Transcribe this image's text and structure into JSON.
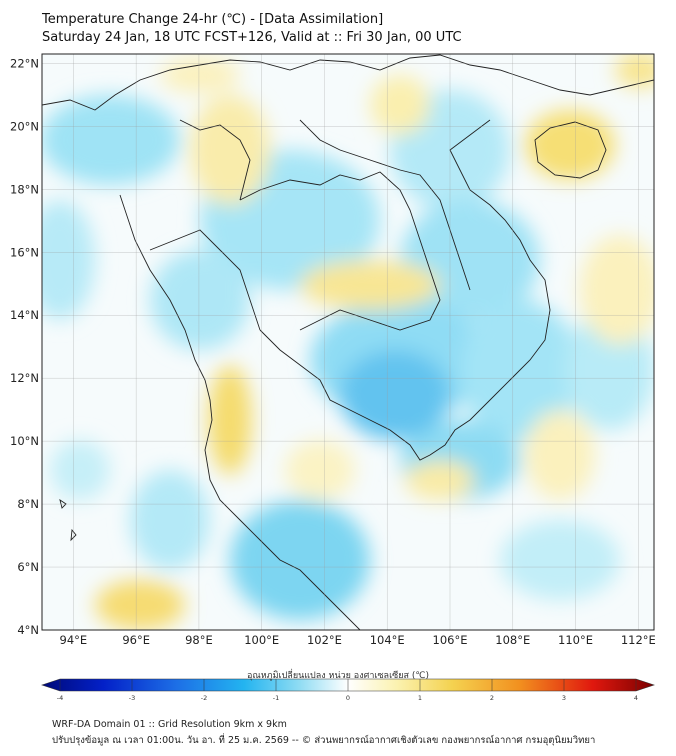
{
  "title": {
    "line1": "Temperature Change 24-hr (℃) - [Data Assimilation]",
    "line2": "Saturday 24 Jan, 18 UTC FCST+126, Valid at :: Fri 30 Jan, 00 UTC"
  },
  "map": {
    "lon_range": [
      93,
      112.5
    ],
    "lat_range": [
      4,
      22.3
    ],
    "lon_ticks": [
      "94°E",
      "96°E",
      "98°E",
      "100°E",
      "102°E",
      "104°E",
      "106°E",
      "108°E",
      "110°E",
      "112°E"
    ],
    "lon_values": [
      94,
      96,
      98,
      100,
      102,
      104,
      106,
      108,
      110,
      112
    ],
    "lat_ticks": [
      "4°N",
      "6°N",
      "8°N",
      "10°N",
      "12°N",
      "14°N",
      "16°N",
      "18°N",
      "20°N",
      "22°N"
    ],
    "lat_values": [
      4,
      6,
      8,
      10,
      12,
      14,
      16,
      18,
      20,
      22
    ],
    "grid": true,
    "colors": {
      "land_cyan": "#a8e6f5",
      "cyan_strong": "#5cd2f0",
      "blue": "#2f86e0",
      "yellow_light": "#fbf3b4",
      "yellow": "#f7e27a",
      "border": "#222222"
    }
  },
  "colorbar": {
    "label": "อุณหภูมิเปลี่ยนแปลง หน่วย องศาเซลเซียส (℃)",
    "tick_labels": [
      "-4",
      "-3",
      "-2",
      "-1",
      "0",
      "1",
      "2",
      "3",
      "4"
    ],
    "tick_values": [
      -4,
      -3,
      -2,
      -1,
      0,
      1,
      2,
      3,
      4
    ],
    "range": [
      -4,
      4
    ]
  },
  "footer": {
    "line1": "WRF-DA Domain 01 :: Grid Resolution 9km x 9km",
    "line2": "ปรับปรุงข้อมูล ณ เวลา 01:00น. วัน อา. ที่ 25 ม.ค. 2569 -- © ส่วนพยากรณ์อากาศเชิงตัวเลข กองพยากรณ์อากาศ กรมอุตุนิยมวิทยา"
  }
}
